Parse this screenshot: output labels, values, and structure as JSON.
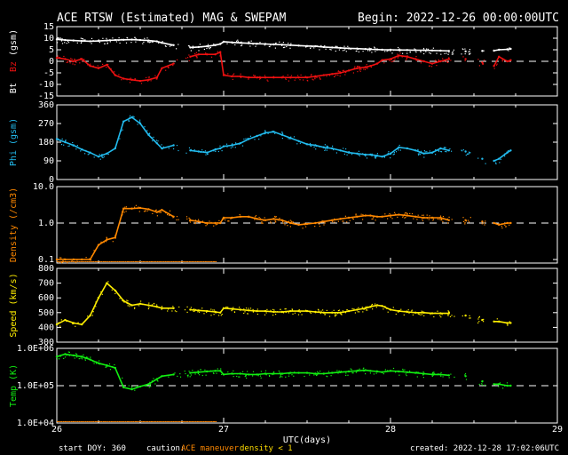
{
  "header": {
    "title": "ACE RTSW (Estimated) MAG & SWEPAM",
    "begin": "Begin: 2022-12-26 00:00:00UTC"
  },
  "footer": {
    "start_doy": "start DOY: 360",
    "caution_label": "caution:",
    "caution_maneuver": "ACE maneuver",
    "caution_density": "density < 1",
    "created": "created: 2022-12-28 17:02:06UTC"
  },
  "colors": {
    "bt": "#ffffff",
    "bz": "#ee1111",
    "phi": "#22bbee",
    "density": "#ff8800",
    "speed": "#ffee00",
    "temp": "#11ee11",
    "maneuver": "#ff8800",
    "density_caution": "#ffdd00"
  },
  "chart_data": {
    "type": "scatter",
    "xlabel": "UTC(days)",
    "xlim": [
      26,
      29
    ],
    "x_ticks": [
      "26",
      "27",
      "28",
      "29"
    ],
    "panels": [
      {
        "id": "mag",
        "ylabel_parts": [
          {
            "text": "Bt",
            "color": "#ffffff"
          },
          {
            "text": "  ",
            "color": "#ffffff"
          },
          {
            "text": "Bz",
            "color": "#ee1111"
          },
          {
            "text": " (gsm)",
            "color": "#ffffff"
          }
        ],
        "ylim": [
          -15,
          15
        ],
        "yticks": [
          15,
          10,
          5,
          0,
          -5,
          -10,
          -15
        ],
        "ytick_labels": [
          "15",
          "10",
          "5",
          "0",
          "-5",
          "-10",
          "-15"
        ],
        "refline": 0,
        "series": [
          {
            "name": "Bt",
            "color": "#ffffff",
            "x": [
              26.0,
              26.05,
              26.1,
              26.15,
              26.2,
              26.25,
              26.3,
              26.35,
              26.4,
              26.45,
              26.5,
              26.55,
              26.6,
              26.63,
              26.7,
              26.75,
              26.8,
              26.85,
              26.9,
              26.95,
              26.98,
              27.0,
              27.05,
              27.1,
              27.15,
              27.2,
              27.25,
              27.3,
              27.35,
              27.4,
              27.45,
              27.5,
              27.55,
              27.6,
              27.65,
              27.7,
              27.75,
              27.8,
              27.85,
              27.88,
              27.92,
              27.95,
              28.0,
              28.05,
              28.1,
              28.15,
              28.2,
              28.25,
              28.3,
              28.35,
              28.4,
              28.45,
              28.5,
              28.55,
              28.58,
              28.62,
              28.65,
              28.7,
              28.72
            ],
            "y": [
              9.5,
              9.2,
              9.0,
              8.8,
              8.7,
              8.8,
              9.0,
              9.2,
              9.3,
              9.4,
              9.2,
              9.0,
              8.6,
              8.0,
              7.0,
              6.5,
              6.0,
              6.2,
              6.5,
              7.0,
              7.5,
              8.5,
              8.2,
              8.0,
              7.8,
              7.6,
              7.5,
              7.3,
              7.2,
              7.0,
              6.8,
              6.6,
              6.5,
              6.2,
              6.0,
              5.8,
              5.6,
              5.5,
              5.3,
              5.2,
              5.1,
              5.0,
              5.0,
              4.9,
              4.9,
              4.8,
              4.8,
              4.7,
              4.6,
              4.5,
              4.5,
              4.3,
              4.0,
              4.5,
              4.5,
              4.6,
              5.0,
              5.2,
              5.4
            ]
          },
          {
            "name": "Bz",
            "color": "#ee1111",
            "x": [
              26.0,
              26.05,
              26.1,
              26.15,
              26.2,
              26.25,
              26.3,
              26.35,
              26.4,
              26.45,
              26.5,
              26.55,
              26.6,
              26.63,
              26.7,
              26.75,
              26.8,
              26.85,
              26.9,
              26.95,
              26.98,
              27.0,
              27.05,
              27.1,
              27.15,
              27.2,
              27.25,
              27.3,
              27.35,
              27.4,
              27.45,
              27.5,
              27.55,
              27.6,
              27.65,
              27.7,
              27.75,
              27.8,
              27.85,
              27.88,
              27.92,
              27.95,
              28.0,
              28.05,
              28.1,
              28.15,
              28.2,
              28.25,
              28.3,
              28.35,
              28.4,
              28.45,
              28.5,
              28.55,
              28.58,
              28.62,
              28.65,
              28.7,
              28.72
            ],
            "y": [
              1.5,
              1.0,
              0.0,
              1.0,
              -2.0,
              -3.0,
              -1.5,
              -6.0,
              -7.5,
              -8.0,
              -8.5,
              -8.0,
              -7.0,
              -3.0,
              -1.0,
              1.0,
              2.0,
              3.0,
              3.0,
              3.0,
              4.0,
              -6.0,
              -6.5,
              -6.5,
              -7.0,
              -7.0,
              -7.0,
              -7.0,
              -7.0,
              -7.0,
              -7.0,
              -7.0,
              -6.5,
              -6.0,
              -5.5,
              -5.0,
              -4.0,
              -3.0,
              -2.5,
              -2.0,
              -1.0,
              0.5,
              1.0,
              2.5,
              2.0,
              1.0,
              0.0,
              -1.0,
              0.0,
              1.0,
              2.0,
              1.0,
              0.0,
              -0.5,
              0.0,
              -2.0,
              2.0,
              0.0,
              0.5
            ]
          }
        ]
      },
      {
        "id": "phi",
        "ylabel_parts": [
          {
            "text": "Phi (gsm)",
            "color": "#22bbee"
          }
        ],
        "ylim": [
          0,
          360
        ],
        "yticks": [
          360,
          270,
          180,
          90,
          0
        ],
        "ytick_labels": [
          "360",
          "270",
          "180",
          "90",
          "0"
        ],
        "series": [
          {
            "name": "Phi",
            "color": "#22bbee",
            "x": [
              26.0,
              26.05,
              26.1,
              26.15,
              26.2,
              26.25,
              26.3,
              26.35,
              26.4,
              26.45,
              26.5,
              26.55,
              26.6,
              26.63,
              26.7,
              26.75,
              26.8,
              26.85,
              26.9,
              26.95,
              26.98,
              27.0,
              27.05,
              27.1,
              27.15,
              27.2,
              27.25,
              27.3,
              27.35,
              27.4,
              27.45,
              27.5,
              27.55,
              27.6,
              27.65,
              27.7,
              27.75,
              27.8,
              27.85,
              27.88,
              27.92,
              27.95,
              28.0,
              28.05,
              28.1,
              28.15,
              28.2,
              28.25,
              28.3,
              28.35,
              28.4,
              28.45,
              28.5,
              28.55,
              28.58,
              28.62,
              28.65,
              28.7,
              28.72
            ],
            "y": [
              195,
              180,
              165,
              145,
              130,
              110,
              125,
              150,
              280,
              300,
              270,
              215,
              175,
              150,
              165,
              150,
              140,
              135,
              130,
              145,
              150,
              160,
              165,
              175,
              195,
              210,
              225,
              230,
              215,
              200,
              185,
              170,
              165,
              155,
              150,
              140,
              130,
              125,
              120,
              120,
              115,
              110,
              125,
              155,
              150,
              140,
              125,
              130,
              150,
              140,
              140,
              135,
              125,
              100,
              90,
              90,
              100,
              130,
              140
            ]
          }
        ]
      },
      {
        "id": "density",
        "ylabel_parts": [
          {
            "text": "Density (/cm3)",
            "color": "#ff8800"
          }
        ],
        "ylim": [
          0.08,
          10
        ],
        "scale": "log",
        "yticks": [
          10,
          1,
          0.1
        ],
        "ytick_labels": [
          "10.0",
          "1.0",
          "0.1"
        ],
        "refline": 1,
        "series": [
          {
            "name": "Density",
            "color": "#ff8800",
            "x": [
              26.0,
              26.05,
              26.1,
              26.15,
              26.2,
              26.25,
              26.3,
              26.35,
              26.4,
              26.45,
              26.5,
              26.55,
              26.6,
              26.63,
              26.7,
              26.75,
              26.8,
              26.85,
              26.9,
              26.95,
              26.98,
              27.0,
              27.05,
              27.1,
              27.15,
              27.2,
              27.25,
              27.3,
              27.35,
              27.4,
              27.45,
              27.5,
              27.55,
              27.6,
              27.65,
              27.7,
              27.75,
              27.8,
              27.85,
              27.88,
              27.92,
              27.95,
              28.0,
              28.05,
              28.1,
              28.15,
              28.2,
              28.25,
              28.3,
              28.35,
              28.4,
              28.45,
              28.5,
              28.55,
              28.58,
              28.62,
              28.65,
              28.7,
              28.72
            ],
            "y": [
              0.1,
              0.1,
              0.1,
              0.1,
              0.1,
              0.25,
              0.35,
              0.4,
              2.5,
              2.5,
              2.6,
              2.4,
              2.0,
              2.3,
              1.5,
              1.4,
              1.2,
              1.1,
              1.0,
              1.0,
              1.0,
              1.4,
              1.4,
              1.5,
              1.5,
              1.3,
              1.2,
              1.3,
              1.2,
              1.0,
              0.9,
              0.95,
              1.0,
              1.1,
              1.2,
              1.3,
              1.4,
              1.5,
              1.6,
              1.6,
              1.5,
              1.5,
              1.6,
              1.7,
              1.6,
              1.5,
              1.4,
              1.4,
              1.4,
              1.2,
              1.3,
              1.2,
              1.2,
              1.1,
              1.1,
              1.0,
              0.9,
              1.0,
              1.0
            ]
          }
        ]
      },
      {
        "id": "speed",
        "ylabel_parts": [
          {
            "text": "Speed (km/s)",
            "color": "#ffee00"
          }
        ],
        "ylim": [
          300,
          800
        ],
        "yticks": [
          800,
          700,
          600,
          500,
          400,
          300
        ],
        "ytick_labels": [
          "800",
          "700",
          "600",
          "500",
          "400",
          "300"
        ],
        "series": [
          {
            "name": "Speed",
            "color": "#ffee00",
            "x": [
              26.0,
              26.05,
              26.1,
              26.15,
              26.2,
              26.25,
              26.3,
              26.35,
              26.4,
              26.45,
              26.5,
              26.55,
              26.6,
              26.63,
              26.7,
              26.75,
              26.8,
              26.85,
              26.9,
              26.95,
              26.98,
              27.0,
              27.05,
              27.1,
              27.15,
              27.2,
              27.25,
              27.3,
              27.35,
              27.4,
              27.45,
              27.5,
              27.55,
              27.6,
              27.65,
              27.7,
              27.75,
              27.8,
              27.85,
              27.88,
              27.92,
              27.95,
              28.0,
              28.05,
              28.1,
              28.15,
              28.2,
              28.25,
              28.3,
              28.35,
              28.4,
              28.45,
              28.5,
              28.55,
              28.58,
              28.62,
              28.65,
              28.7,
              28.72
            ],
            "y": [
              420,
              450,
              430,
              420,
              480,
              600,
              700,
              650,
              580,
              550,
              560,
              550,
              540,
              530,
              530,
              525,
              520,
              515,
              510,
              505,
              500,
              530,
              525,
              520,
              515,
              510,
              510,
              505,
              505,
              510,
              510,
              510,
              505,
              500,
              500,
              500,
              510,
              520,
              530,
              540,
              550,
              545,
              520,
              510,
              505,
              500,
              500,
              495,
              495,
              495,
              490,
              480,
              460,
              450,
              445,
              440,
              440,
              430,
              430
            ]
          }
        ]
      },
      {
        "id": "temp",
        "ylabel_parts": [
          {
            "text": "Temp (K)",
            "color": "#11ee11"
          }
        ],
        "ylim": [
          10000,
          1000000
        ],
        "scale": "log",
        "yticks": [
          1000000,
          100000,
          10000
        ],
        "ytick_labels": [
          "1.0E+06",
          "1.0E+05",
          "1.0E+04"
        ],
        "refline": 100000,
        "series": [
          {
            "name": "Temp",
            "color": "#11ee11",
            "x": [
              26.0,
              26.05,
              26.1,
              26.15,
              26.2,
              26.25,
              26.3,
              26.35,
              26.4,
              26.45,
              26.5,
              26.55,
              26.6,
              26.63,
              26.7,
              26.75,
              26.8,
              26.85,
              26.9,
              26.95,
              26.98,
              27.0,
              27.05,
              27.1,
              27.15,
              27.2,
              27.25,
              27.3,
              27.35,
              27.4,
              27.45,
              27.5,
              27.55,
              27.6,
              27.65,
              27.7,
              27.75,
              27.8,
              27.85,
              27.88,
              27.92,
              27.95,
              28.0,
              28.05,
              28.1,
              28.15,
              28.2,
              28.25,
              28.3,
              28.35,
              28.4,
              28.45,
              28.5,
              28.55,
              28.58,
              28.62,
              28.65,
              28.7,
              28.72
            ],
            "y": [
              600000,
              700000,
              650000,
              600000,
              500000,
              400000,
              350000,
              300000,
              90000,
              80000,
              95000,
              110000,
              150000,
              180000,
              200000,
              210000,
              220000,
              230000,
              240000,
              250000,
              250000,
              200000,
              210000,
              210000,
              200000,
              200000,
              210000,
              210000,
              210000,
              220000,
              220000,
              220000,
              210000,
              210000,
              220000,
              230000,
              240000,
              250000,
              260000,
              250000,
              240000,
              230000,
              250000,
              240000,
              230000,
              220000,
              210000,
              200000,
              200000,
              190000,
              200000,
              180000,
              150000,
              130000,
              120000,
              110000,
              110000,
              100000,
              100000
            ]
          }
        ]
      }
    ]
  }
}
